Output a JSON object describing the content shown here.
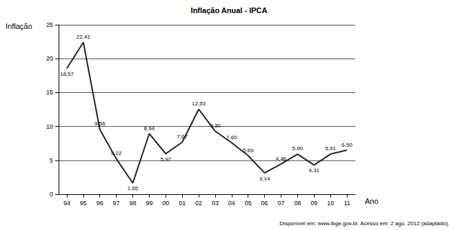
{
  "chart_data": {
    "type": "line",
    "title": "Inflação Anual - IPCA",
    "y_label": "Inflação",
    "x_label": "Ano",
    "source": "Disponível em: www.ibge.gov.br. Acesso em: 2 ago. 2012 (adaptado).",
    "categories": [
      "94",
      "95",
      "96",
      "97",
      "98",
      "99",
      "00",
      "01",
      "02",
      "03",
      "04",
      "05",
      "06",
      "07",
      "08",
      "09",
      "10",
      "11"
    ],
    "values": [
      18.57,
      22.41,
      9.56,
      5.22,
      1.65,
      8.94,
      5.97,
      7.67,
      12.53,
      9.3,
      7.6,
      5.69,
      3.14,
      4.46,
      5.9,
      4.31,
      5.91,
      6.5
    ],
    "value_labels": [
      "18,57",
      "22,41",
      "9,56",
      "5,22",
      "1,65",
      "8,94",
      "5,97",
      "7,67",
      "12,53",
      "9,30",
      "7,60",
      "5,69",
      "3,14",
      "4,46",
      "5,90",
      "4,31",
      "5,91",
      "6,50"
    ],
    "color": "#222222",
    "ylim": [
      0,
      25
    ],
    "yticks": [
      0,
      5,
      10,
      15,
      20,
      25
    ],
    "grid": true,
    "data_labels": true
  }
}
